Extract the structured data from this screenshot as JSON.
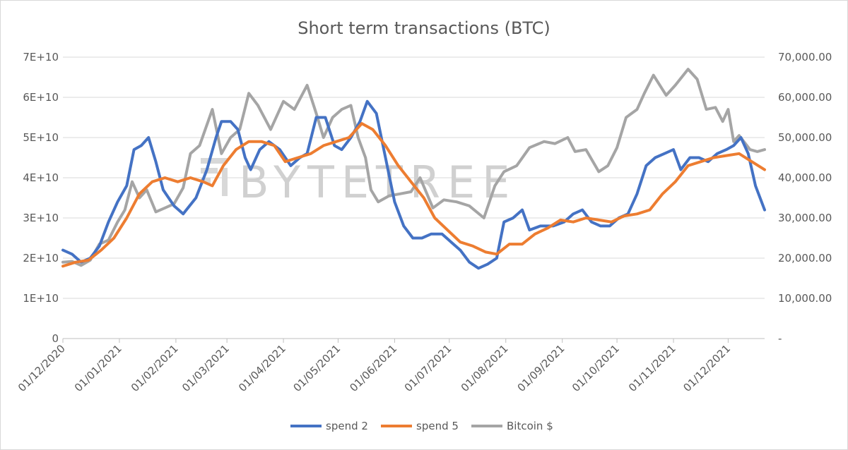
{
  "chart_data": {
    "type": "line",
    "title": "Short term transactions (BTC)",
    "watermark": "BYTETREE",
    "x_range": [
      "2020-12-01",
      "2021-12-21"
    ],
    "x_ticks": [
      "01/12/2020",
      "01/01/2021",
      "01/02/2021",
      "01/03/2021",
      "01/04/2021",
      "01/05/2021",
      "01/06/2021",
      "01/07/2021",
      "01/08/2021",
      "01/09/2021",
      "01/10/2021",
      "01/11/2021",
      "01/12/2021"
    ],
    "y_left": {
      "range": [
        0,
        70000000000
      ],
      "ticks": [
        {
          "value": 0,
          "label": "0"
        },
        {
          "value": 10000000000,
          "label": "1E+10"
        },
        {
          "value": 20000000000,
          "label": "2E+10"
        },
        {
          "value": 30000000000,
          "label": "3E+10"
        },
        {
          "value": 40000000000,
          "label": "4E+10"
        },
        {
          "value": 50000000000,
          "label": "5E+10"
        },
        {
          "value": 60000000000,
          "label": "6E+10"
        },
        {
          "value": 70000000000,
          "label": "7E+10"
        }
      ]
    },
    "y_right": {
      "range": [
        0,
        70000
      ],
      "ticks": [
        {
          "value": 0,
          "label": "-"
        },
        {
          "value": 10000,
          "label": "10,000.00"
        },
        {
          "value": 20000,
          "label": "20,000.00"
        },
        {
          "value": 30000,
          "label": "30,000.00"
        },
        {
          "value": 40000,
          "label": "40,000.00"
        },
        {
          "value": 50000,
          "label": "50,000.00"
        },
        {
          "value": 60000,
          "label": "60,000.00"
        },
        {
          "value": 70000,
          "label": "70,000.00"
        }
      ]
    },
    "grid": true,
    "legend_position": "bottom",
    "series": [
      {
        "name": "spend 2",
        "axis": "left",
        "color": "#4472C4",
        "points": [
          [
            "2020-12-01",
            22000000000.0
          ],
          [
            "2020-12-06",
            21000000000.0
          ],
          [
            "2020-12-11",
            19000000000.0
          ],
          [
            "2020-12-16",
            20000000000.0
          ],
          [
            "2020-12-21",
            23000000000.0
          ],
          [
            "2020-12-26",
            29000000000.0
          ],
          [
            "2020-12-31",
            34000000000.0
          ],
          [
            "2021-01-05",
            38000000000.0
          ],
          [
            "2021-01-09",
            47000000000.0
          ],
          [
            "2021-01-13",
            48000000000.0
          ],
          [
            "2021-01-17",
            50000000000.0
          ],
          [
            "2021-01-21",
            44000000000.0
          ],
          [
            "2021-01-25",
            37000000000.0
          ],
          [
            "2021-01-31",
            33000000000.0
          ],
          [
            "2021-02-05",
            31000000000.0
          ],
          [
            "2021-02-12",
            35000000000.0
          ],
          [
            "2021-02-18",
            42000000000.0
          ],
          [
            "2021-02-23",
            50000000000.0
          ],
          [
            "2021-02-26",
            54000000000.0
          ],
          [
            "2021-03-03",
            54000000000.0
          ],
          [
            "2021-03-07",
            52000000000.0
          ],
          [
            "2021-03-11",
            45000000000.0
          ],
          [
            "2021-03-14",
            42000000000.0
          ],
          [
            "2021-03-19",
            47000000000.0
          ],
          [
            "2021-03-24",
            49000000000.0
          ],
          [
            "2021-03-30",
            47000000000.0
          ],
          [
            "2021-04-05",
            43000000000.0
          ],
          [
            "2021-04-10",
            45000000000.0
          ],
          [
            "2021-04-14",
            46000000000.0
          ],
          [
            "2021-04-19",
            55000000000.0
          ],
          [
            "2021-04-24",
            55000000000.0
          ],
          [
            "2021-04-29",
            48000000000.0
          ],
          [
            "2021-05-03",
            47000000000.0
          ],
          [
            "2021-05-08",
            50000000000.0
          ],
          [
            "2021-05-13",
            54000000000.0
          ],
          [
            "2021-05-17",
            59000000000.0
          ],
          [
            "2021-05-22",
            56000000000.0
          ],
          [
            "2021-05-27",
            45000000000.0
          ],
          [
            "2021-06-01",
            34000000000.0
          ],
          [
            "2021-06-06",
            28000000000.0
          ],
          [
            "2021-06-11",
            25000000000.0
          ],
          [
            "2021-06-16",
            25000000000.0
          ],
          [
            "2021-06-21",
            26000000000.0
          ],
          [
            "2021-06-27",
            26000000000.0
          ],
          [
            "2021-07-02",
            24000000000.0
          ],
          [
            "2021-07-07",
            22000000000.0
          ],
          [
            "2021-07-12",
            19000000000.0
          ],
          [
            "2021-07-17",
            17500000000.0
          ],
          [
            "2021-07-22",
            18500000000.0
          ],
          [
            "2021-07-27",
            20000000000.0
          ],
          [
            "2021-07-31",
            29000000000.0
          ],
          [
            "2021-08-05",
            30000000000.0
          ],
          [
            "2021-08-10",
            32000000000.0
          ],
          [
            "2021-08-14",
            27000000000.0
          ],
          [
            "2021-08-20",
            28000000000.0
          ],
          [
            "2021-08-27",
            28000000000.0
          ],
          [
            "2021-09-02",
            29000000000.0
          ],
          [
            "2021-09-07",
            31000000000.0
          ],
          [
            "2021-09-12",
            32000000000.0
          ],
          [
            "2021-09-17",
            29000000000.0
          ],
          [
            "2021-09-22",
            28000000000.0
          ],
          [
            "2021-09-27",
            28000000000.0
          ],
          [
            "2021-10-02",
            30000000000.0
          ],
          [
            "2021-10-07",
            31000000000.0
          ],
          [
            "2021-10-12",
            36000000000.0
          ],
          [
            "2021-10-17",
            43000000000.0
          ],
          [
            "2021-10-22",
            45000000000.0
          ],
          [
            "2021-10-27",
            46000000000.0
          ],
          [
            "2021-11-01",
            47000000000.0
          ],
          [
            "2021-11-05",
            42000000000.0
          ],
          [
            "2021-11-10",
            45000000000.0
          ],
          [
            "2021-11-15",
            45000000000.0
          ],
          [
            "2021-11-20",
            44000000000.0
          ],
          [
            "2021-11-25",
            46000000000.0
          ],
          [
            "2021-11-30",
            47000000000.0
          ],
          [
            "2021-12-04",
            48000000000.0
          ],
          [
            "2021-12-08",
            50000000000.0
          ],
          [
            "2021-12-12",
            46000000000.0
          ],
          [
            "2021-12-16",
            38000000000.0
          ],
          [
            "2021-12-21",
            32000000000.0
          ]
        ]
      },
      {
        "name": "spend 5",
        "axis": "left",
        "color": "#ED7D31",
        "points": [
          [
            "2020-12-01",
            18000000000.0
          ],
          [
            "2020-12-08",
            19000000000.0
          ],
          [
            "2020-12-15",
            19500000000.0
          ],
          [
            "2020-12-22",
            22000000000.0
          ],
          [
            "2020-12-29",
            25000000000.0
          ],
          [
            "2021-01-05",
            30000000000.0
          ],
          [
            "2021-01-12",
            36000000000.0
          ],
          [
            "2021-01-19",
            39000000000.0
          ],
          [
            "2021-01-26",
            40000000000.0
          ],
          [
            "2021-02-02",
            39000000000.0
          ],
          [
            "2021-02-09",
            40000000000.0
          ],
          [
            "2021-02-16",
            39000000000.0
          ],
          [
            "2021-02-21",
            38000000000.0
          ],
          [
            "2021-02-27",
            43000000000.0
          ],
          [
            "2021-03-06",
            47000000000.0
          ],
          [
            "2021-03-13",
            49000000000.0
          ],
          [
            "2021-03-20",
            49000000000.0
          ],
          [
            "2021-03-27",
            48000000000.0
          ],
          [
            "2021-04-02",
            44000000000.0
          ],
          [
            "2021-04-09",
            45000000000.0
          ],
          [
            "2021-04-16",
            46000000000.0
          ],
          [
            "2021-04-23",
            48000000000.0
          ],
          [
            "2021-04-30",
            49000000000.0
          ],
          [
            "2021-05-07",
            50000000000.0
          ],
          [
            "2021-05-14",
            53500000000.0
          ],
          [
            "2021-05-20",
            52000000000.0
          ],
          [
            "2021-05-27",
            48000000000.0
          ],
          [
            "2021-06-03",
            43000000000.0
          ],
          [
            "2021-06-10",
            39000000000.0
          ],
          [
            "2021-06-17",
            35000000000.0
          ],
          [
            "2021-06-23",
            30000000000.0
          ],
          [
            "2021-06-30",
            27000000000.0
          ],
          [
            "2021-07-07",
            24000000000.0
          ],
          [
            "2021-07-14",
            23000000000.0
          ],
          [
            "2021-07-21",
            21500000000.0
          ],
          [
            "2021-07-27",
            21000000000.0
          ],
          [
            "2021-08-03",
            23500000000.0
          ],
          [
            "2021-08-10",
            23500000000.0
          ],
          [
            "2021-08-17",
            26000000000.0
          ],
          [
            "2021-08-24",
            27500000000.0
          ],
          [
            "2021-08-31",
            29500000000.0
          ],
          [
            "2021-09-07",
            29000000000.0
          ],
          [
            "2021-09-14",
            30000000000.0
          ],
          [
            "2021-09-21",
            29500000000.0
          ],
          [
            "2021-09-28",
            29000000000.0
          ],
          [
            "2021-10-05",
            30500000000.0
          ],
          [
            "2021-10-12",
            31000000000.0
          ],
          [
            "2021-10-19",
            32000000000.0
          ],
          [
            "2021-10-26",
            36000000000.0
          ],
          [
            "2021-11-02",
            39000000000.0
          ],
          [
            "2021-11-09",
            43000000000.0
          ],
          [
            "2021-11-16",
            44000000000.0
          ],
          [
            "2021-11-23",
            45000000000.0
          ],
          [
            "2021-11-30",
            45500000000.0
          ],
          [
            "2021-12-07",
            46000000000.0
          ],
          [
            "2021-12-14",
            44000000000.0
          ],
          [
            "2021-12-21",
            42000000000.0
          ]
        ]
      },
      {
        "name": "Bitcoin $",
        "axis": "right",
        "color": "#A5A5A5",
        "points": [
          [
            "2020-12-01",
            19000
          ],
          [
            "2020-12-06",
            19200
          ],
          [
            "2020-12-11",
            18200
          ],
          [
            "2020-12-16",
            19500
          ],
          [
            "2020-12-21",
            23500
          ],
          [
            "2020-12-26",
            24500
          ],
          [
            "2020-12-31",
            29000
          ],
          [
            "2021-01-04",
            32000
          ],
          [
            "2021-01-08",
            39000
          ],
          [
            "2021-01-12",
            35000
          ],
          [
            "2021-01-16",
            37000
          ],
          [
            "2021-01-21",
            31500
          ],
          [
            "2021-01-26",
            32500
          ],
          [
            "2021-01-31",
            33500
          ],
          [
            "2021-02-05",
            37500
          ],
          [
            "2021-02-09",
            46000
          ],
          [
            "2021-02-14",
            48000
          ],
          [
            "2021-02-21",
            57000
          ],
          [
            "2021-02-26",
            46000
          ],
          [
            "2021-03-03",
            50000
          ],
          [
            "2021-03-08",
            52000
          ],
          [
            "2021-03-13",
            61000
          ],
          [
            "2021-03-18",
            58000
          ],
          [
            "2021-03-25",
            52000
          ],
          [
            "2021-04-01",
            59000
          ],
          [
            "2021-04-07",
            57000
          ],
          [
            "2021-04-14",
            63000
          ],
          [
            "2021-04-19",
            56000
          ],
          [
            "2021-04-23",
            50000
          ],
          [
            "2021-04-28",
            55000
          ],
          [
            "2021-05-03",
            57000
          ],
          [
            "2021-05-08",
            58000
          ],
          [
            "2021-05-12",
            50000
          ],
          [
            "2021-05-16",
            45000
          ],
          [
            "2021-05-19",
            37000
          ],
          [
            "2021-05-23",
            34000
          ],
          [
            "2021-05-29",
            35500
          ],
          [
            "2021-06-04",
            36000
          ],
          [
            "2021-06-10",
            36500
          ],
          [
            "2021-06-15",
            40000
          ],
          [
            "2021-06-22",
            32500
          ],
          [
            "2021-06-28",
            34500
          ],
          [
            "2021-07-05",
            34000
          ],
          [
            "2021-07-12",
            33000
          ],
          [
            "2021-07-20",
            30000
          ],
          [
            "2021-07-26",
            38000
          ],
          [
            "2021-07-31",
            41500
          ],
          [
            "2021-08-07",
            43000
          ],
          [
            "2021-08-14",
            47500
          ],
          [
            "2021-08-22",
            49000
          ],
          [
            "2021-08-28",
            48500
          ],
          [
            "2021-09-04",
            50000
          ],
          [
            "2021-09-08",
            46500
          ],
          [
            "2021-09-14",
            47000
          ],
          [
            "2021-09-21",
            41500
          ],
          [
            "2021-09-26",
            43000
          ],
          [
            "2021-10-01",
            47500
          ],
          [
            "2021-10-06",
            55000
          ],
          [
            "2021-10-12",
            57000
          ],
          [
            "2021-10-16",
            61000
          ],
          [
            "2021-10-21",
            65500
          ],
          [
            "2021-10-28",
            60500
          ],
          [
            "2021-11-02",
            63000
          ],
          [
            "2021-11-09",
            67000
          ],
          [
            "2021-11-14",
            64500
          ],
          [
            "2021-11-19",
            57000
          ],
          [
            "2021-11-24",
            57500
          ],
          [
            "2021-11-28",
            54000
          ],
          [
            "2021-12-01",
            57000
          ],
          [
            "2021-12-04",
            49000
          ],
          [
            "2021-12-07",
            50500
          ],
          [
            "2021-12-13",
            47000
          ],
          [
            "2021-12-17",
            46500
          ],
          [
            "2021-12-21",
            47000
          ]
        ]
      }
    ]
  }
}
